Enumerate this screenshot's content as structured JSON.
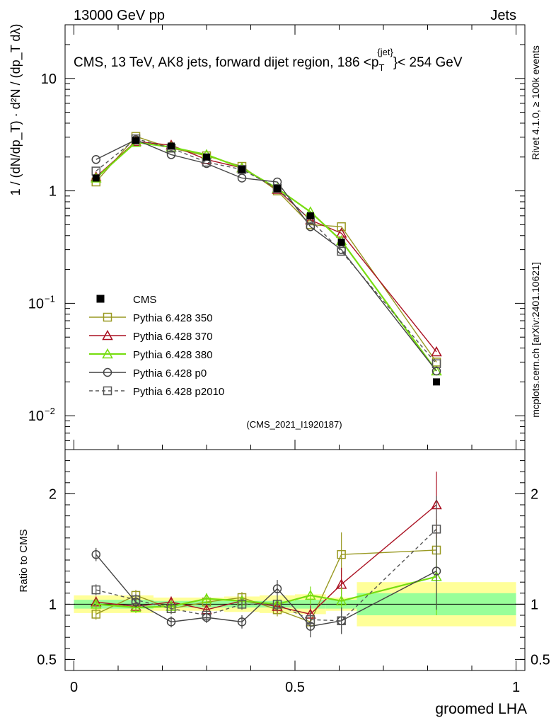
{
  "header": {
    "left": "13000 GeV pp",
    "right": "Jets"
  },
  "side_labels": {
    "rivet": "Rivet 4.1.0, ≥ 100k events",
    "mcplots": "mcplots.cern.ch [arXiv:2401.10621]"
  },
  "chart_data": {
    "type": "line",
    "title": "CMS, 13 TeV, AK8 jets, forward dijet region, 186 <p_T^{jet}> < 254 GeV",
    "title_parts": {
      "prefix": "CMS, 13 TeV, AK8 jets, forward dijet region, 186 <p",
      "sub": "T",
      "sup": "{jet}",
      "suffix": "}< 254 GeV"
    },
    "analysis_id": "(CMS_2021_I1920187)",
    "xlabel": "groomed LHA",
    "ylabel_top": "1 / (dN/dp_T) · d²N / (dp_T dλ)",
    "ylabel_ratio": "Ratio to CMS",
    "xlim": [
      -0.02,
      1.02
    ],
    "ylim_top": [
      0.005,
      30
    ],
    "ylim_ratio": [
      0.4,
      2.4
    ],
    "xticks": [
      0,
      0.5,
      1
    ],
    "xtick_labels": [
      "0",
      "0.5",
      "1"
    ],
    "yticks_top": [
      {
        "value": 10,
        "label": "10",
        "sup": ""
      },
      {
        "value": 1,
        "label": "1",
        "sup": ""
      },
      {
        "value": 0.1,
        "label": "10",
        "sup": "−1"
      },
      {
        "value": 0.01,
        "label": "10",
        "sup": "−2"
      }
    ],
    "yticks_ratio": [
      {
        "value": 2,
        "label": "2"
      },
      {
        "value": 1,
        "label": "1"
      },
      {
        "value": 0.5,
        "label": "0.5"
      }
    ],
    "bin_edges": [
      0.0,
      0.1,
      0.18,
      0.26,
      0.34,
      0.42,
      0.5,
      0.57,
      0.64,
      1.0
    ],
    "cms_points": {
      "label": "CMS",
      "x": [
        0.05,
        0.14,
        0.22,
        0.3,
        0.38,
        0.46,
        0.535,
        0.605,
        0.82
      ],
      "y": [
        1.3,
        2.8,
        2.5,
        2.0,
        1.55,
        1.05,
        0.6,
        0.35,
        0.02
      ]
    },
    "ratio_bands": {
      "stat_half": [
        0.04,
        0.04,
        0.03,
        0.03,
        0.03,
        0.03,
        0.04,
        0.04,
        0.1
      ],
      "total_half": [
        0.08,
        0.08,
        0.06,
        0.06,
        0.07,
        0.08,
        0.09,
        0.06,
        0.2
      ]
    },
    "series": [
      {
        "name": "Pythia 6.428 350",
        "color": "#999922",
        "marker": "square",
        "dashed": false,
        "values": [
          1.2,
          3.05,
          2.4,
          2.05,
          1.65,
          1.0,
          0.5,
          0.48,
          0.03
        ],
        "ratio": [
          0.91,
          1.08,
          0.96,
          1.02,
          1.06,
          0.95,
          0.84,
          1.45,
          1.49
        ],
        "ratio_err": [
          0.05,
          0.05,
          0.05,
          0.05,
          0.05,
          0.06,
          0.08,
          0.2,
          0.28
        ]
      },
      {
        "name": "Pythia 6.428 370",
        "color": "#aa1122",
        "marker": "triangle",
        "dashed": false,
        "values": [
          1.33,
          2.75,
          2.55,
          1.9,
          1.6,
          1.03,
          0.55,
          0.42,
          0.037
        ],
        "ratio": [
          1.02,
          0.98,
          1.02,
          0.95,
          1.03,
          0.98,
          0.91,
          1.18,
          1.9
        ],
        "ratio_err": [
          0.05,
          0.05,
          0.05,
          0.05,
          0.05,
          0.06,
          0.08,
          0.15,
          0.3
        ]
      },
      {
        "name": "Pythia 6.428 380",
        "color": "#77dd11",
        "marker": "triangle",
        "dashed": false,
        "values": [
          1.3,
          2.7,
          2.45,
          2.1,
          1.6,
          1.05,
          0.65,
          0.36,
          0.025
        ],
        "ratio": [
          1.0,
          0.97,
          0.98,
          1.05,
          1.03,
          1.0,
          1.08,
          1.03,
          1.25
        ],
        "ratio_err": [
          0.05,
          0.05,
          0.05,
          0.05,
          0.05,
          0.06,
          0.08,
          0.12,
          0.35
        ]
      },
      {
        "name": "Pythia 6.428 p0",
        "color": "#444444",
        "marker": "circle",
        "dashed": false,
        "values": [
          1.9,
          2.85,
          2.1,
          1.75,
          1.3,
          1.2,
          0.48,
          0.3,
          0.025
        ],
        "ratio": [
          1.45,
          1.02,
          0.84,
          0.88,
          0.84,
          1.14,
          0.8,
          0.85,
          1.3
        ],
        "ratio_err": [
          0.06,
          0.05,
          0.05,
          0.05,
          0.06,
          0.08,
          0.1,
          0.12,
          0.35
        ]
      },
      {
        "name": "Pythia 6.428 p2010",
        "color": "#555555",
        "marker": "square",
        "dashed": true,
        "values": [
          1.5,
          2.9,
          2.4,
          1.8,
          1.55,
          1.05,
          0.55,
          0.29,
          0.029
        ],
        "ratio": [
          1.13,
          1.04,
          0.96,
          0.9,
          1.0,
          1.0,
          0.86,
          0.85,
          1.68
        ],
        "ratio_err": [
          0.05,
          0.05,
          0.05,
          0.05,
          0.05,
          0.06,
          0.08,
          0.12,
          0.3
        ]
      }
    ]
  }
}
